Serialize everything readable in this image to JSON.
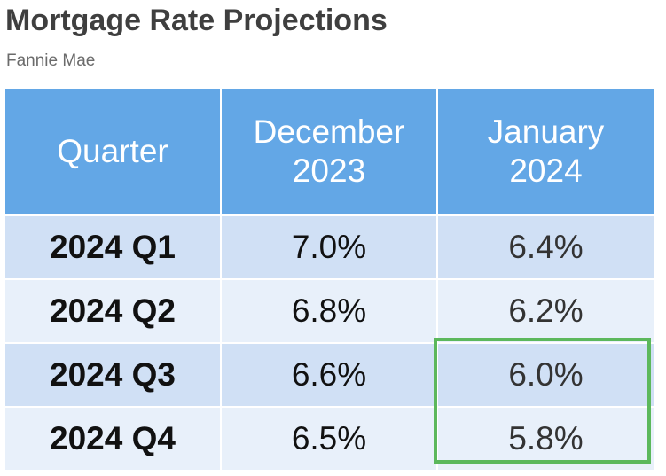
{
  "title": "Mortgage Rate Projections",
  "subtitle": "Fannie Mae",
  "colors": {
    "header_bg": "#63a7e6",
    "row_odd": "#d0e0f5",
    "row_even": "#e8f0fa",
    "highlight_border": "#5cb85c"
  },
  "chart_data": {
    "type": "table",
    "title": "Mortgage Rate Projections",
    "subtitle": "Fannie Mae",
    "columns": [
      {
        "line1": "Quarter",
        "line2": ""
      },
      {
        "line1": "December",
        "line2": "2023"
      },
      {
        "line1": "January",
        "line2": "2024"
      }
    ],
    "rows": [
      {
        "quarter": "2024 Q1",
        "december_2023": "7.0%",
        "january_2024": "6.4%"
      },
      {
        "quarter": "2024 Q2",
        "december_2023": "6.8%",
        "january_2024": "6.2%"
      },
      {
        "quarter": "2024 Q3",
        "december_2023": "6.6%",
        "january_2024": "6.0%"
      },
      {
        "quarter": "2024 Q4",
        "december_2023": "6.5%",
        "january_2024": "5.8%"
      }
    ],
    "highlighted_cells": {
      "column": "january_2024",
      "rows": [
        "2024 Q3",
        "2024 Q4"
      ]
    }
  }
}
